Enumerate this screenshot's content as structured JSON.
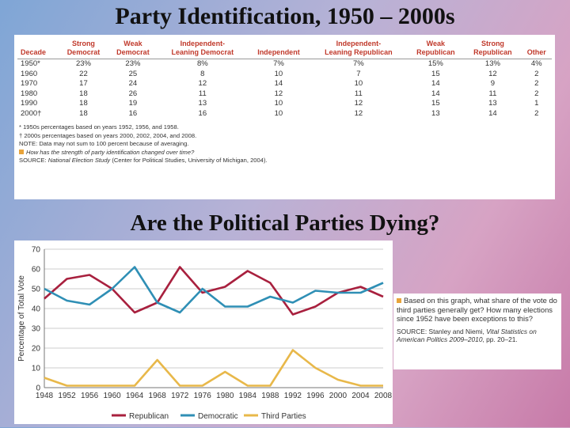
{
  "slide": {
    "title_top": "Party Identification, 1950 – 2000s",
    "title_bottom": "Are the Political Parties Dying?"
  },
  "table": {
    "headers": [
      "Decade",
      "Strong\nDemocrat",
      "Weak\nDemocrat",
      "Independent-\nLeaning Democrat",
      "Independent",
      "Independent-\nLeaning Republican",
      "Weak\nRepublican",
      "Strong\nRepublican",
      "Other"
    ],
    "rows": [
      [
        "1950*",
        "23%",
        "23%",
        "8%",
        "7%",
        "7%",
        "15%",
        "13%",
        "4%"
      ],
      [
        "1960",
        "22",
        "25",
        "8",
        "10",
        "7",
        "15",
        "12",
        "2"
      ],
      [
        "1970",
        "17",
        "24",
        "12",
        "14",
        "10",
        "14",
        "9",
        "2"
      ],
      [
        "1980",
        "18",
        "26",
        "11",
        "12",
        "11",
        "14",
        "11",
        "2"
      ],
      [
        "1990",
        "18",
        "19",
        "13",
        "10",
        "12",
        "15",
        "13",
        "1"
      ],
      [
        "2000†",
        "18",
        "16",
        "16",
        "10",
        "12",
        "13",
        "14",
        "2"
      ]
    ],
    "note1": "* 1950s percentages based on years 1952, 1956, and 1958.",
    "note2": "† 2000s percentages based on years 2000, 2002, 2004, and 2008.",
    "note3": "NOTE: Data may not sum to 100 percent because of averaging.",
    "question": "How has the strength of party identification changed over time?",
    "source_label": "SOURCE: ",
    "source_italic": "National Election Study",
    "source_rest": " (Center for Political Studies, University of Michigan, 2004)."
  },
  "side_box": {
    "question": "Based on this graph, what share of the vote do third parties generally get? How many elections since 1952 have been exceptions to this?",
    "source_label": "SOURCE: Stanley and Niemi, ",
    "source_book": "Vital Statistics on American Politics 2009–2010",
    "source_rest": ", pp. 20–21."
  },
  "chart_data": {
    "type": "line",
    "title": "",
    "xlabel": "",
    "ylabel": "Percentage of Total Vote",
    "x": [
      "1948",
      "1952",
      "1956",
      "1960",
      "1964",
      "1968",
      "1972",
      "1976",
      "1980",
      "1984",
      "1988",
      "1992",
      "1996",
      "2000",
      "2004",
      "2008"
    ],
    "ylim": [
      0,
      70
    ],
    "yticks": [
      0,
      10,
      20,
      30,
      40,
      50,
      60,
      70
    ],
    "grid": "horizontal",
    "legend_position": "bottom",
    "series": [
      {
        "name": "Republican",
        "color": "#a8203e",
        "values": [
          45,
          55,
          57,
          50,
          38,
          43,
          61,
          48,
          51,
          59,
          53,
          37,
          41,
          48,
          51,
          46
        ]
      },
      {
        "name": "Democratic",
        "color": "#2f8fb5",
        "values": [
          50,
          44,
          42,
          50,
          61,
          43,
          38,
          50,
          41,
          41,
          46,
          43,
          49,
          48,
          48,
          53
        ]
      },
      {
        "name": "Third Parties",
        "color": "#e8b84a",
        "values": [
          5,
          1,
          1,
          1,
          1,
          14,
          1,
          1,
          8,
          1,
          1,
          19,
          10,
          4,
          1,
          1
        ]
      }
    ]
  }
}
